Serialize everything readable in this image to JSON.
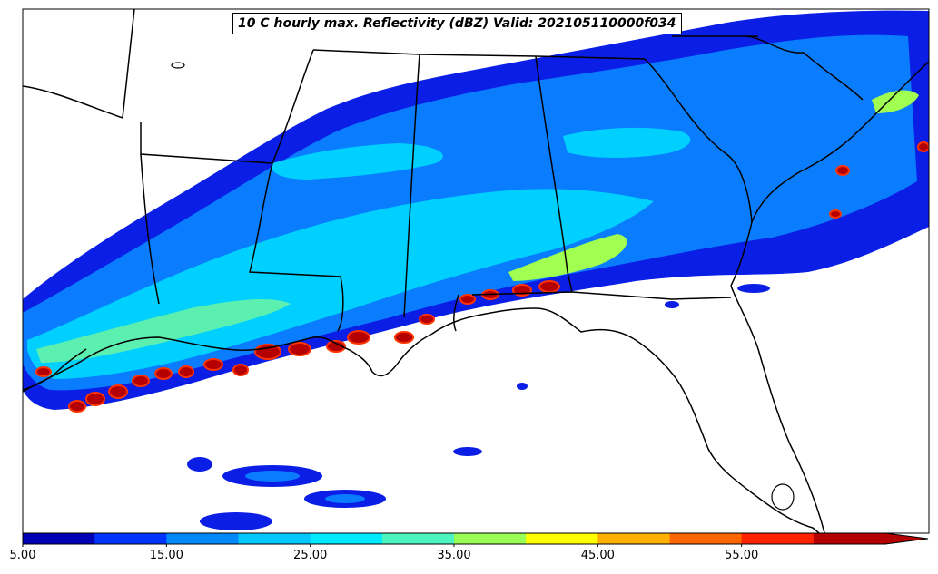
{
  "title": "10 C hourly max. Reflectivity (dBZ) Valid: 202105110000f034",
  "colorbar": {
    "ticks": [
      "5.00",
      "15.00",
      "25.00",
      "35.00",
      "45.00",
      "55.00"
    ],
    "colors": [
      "#0000b4",
      "#0033ff",
      "#0088ff",
      "#00c8ff",
      "#00eaff",
      "#4cf5c0",
      "#99ff55",
      "#ffff00",
      "#ffb000",
      "#ff6600",
      "#ff2200",
      "#b40000"
    ]
  }
}
